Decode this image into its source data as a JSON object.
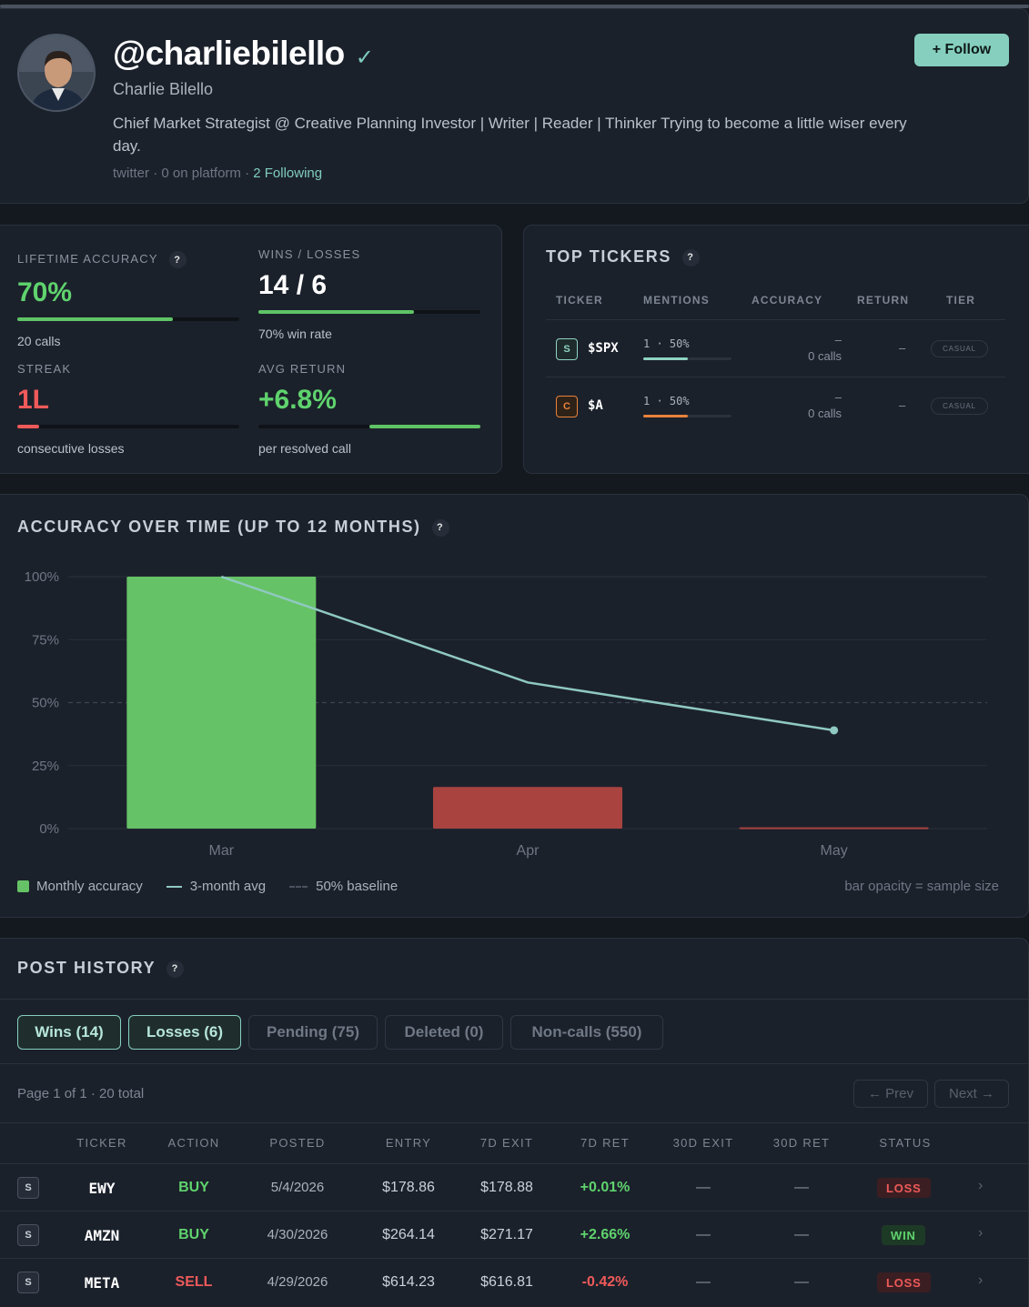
{
  "profile": {
    "handle": "@charliebilello",
    "verified_glyph": "✓",
    "full_name": "Charlie Bilello",
    "bio": "Chief Market Strategist @ Creative Planning Investor | Writer | Reader | Thinker Trying to become a little wiser every day.",
    "source": "twitter",
    "on_platform": "0 on platform",
    "following": "2 Following",
    "separator": "·",
    "follow_label": "+ Follow"
  },
  "stats": {
    "lifetime_accuracy": {
      "label": "LIFETIME ACCURACY",
      "value": "70%",
      "sub": "20 calls",
      "fill_pct": 70
    },
    "wins_losses": {
      "label": "WINS / LOSSES",
      "value": "14 / 6",
      "sub": "70% win rate",
      "fill_pct": 70
    },
    "streak": {
      "label": "STREAK",
      "value": "1L",
      "sub": "consecutive losses",
      "fill_pct": 10
    },
    "avg_return": {
      "label": "AVG RETURN",
      "value": "+6.8%",
      "sub": "per resolved call",
      "fill_pct": 50
    },
    "help_glyph": "?"
  },
  "top_tickers": {
    "title": "TOP TICKERS",
    "headers": [
      "TICKER",
      "MENTIONS",
      "ACCURACY",
      "RETURN",
      "TIER"
    ],
    "rows": [
      {
        "badge": "S",
        "symbol": "$SPX",
        "mentions": "1 · 50%",
        "fill_pct": 50,
        "fill_color": "#8fd3c3",
        "badge_color": "#8fd3c3",
        "badge_bg": "#1e2b2d",
        "accuracy": "–",
        "calls": "0 calls",
        "return": "–",
        "tier": "CASUAL"
      },
      {
        "badge": "C",
        "symbol": "$A",
        "mentions": "1 · 50%",
        "fill_pct": 50,
        "fill_color": "#e8823a",
        "badge_color": "#e8823a",
        "badge_bg": "#2e2218",
        "accuracy": "–",
        "calls": "0 calls",
        "return": "–",
        "tier": "CASUAL"
      }
    ]
  },
  "accuracy_chart": {
    "title": "ACCURACY OVER TIME (UP TO 12 MONTHS)",
    "legend": {
      "monthly": "Monthly accuracy",
      "avg": "3-month avg",
      "baseline": "50% baseline",
      "note": "bar opacity = sample size"
    }
  },
  "chart_data": {
    "type": "bar",
    "categories": [
      "Mar",
      "Apr",
      "May"
    ],
    "series": [
      {
        "name": "Monthly accuracy",
        "type": "bar",
        "values": [
          100,
          16.5,
          0.5
        ],
        "colors": [
          "#66c266",
          "#a84340",
          "#a84340"
        ]
      },
      {
        "name": "3-month avg",
        "type": "line",
        "values": [
          100,
          58,
          39
        ],
        "color": "#8fc9c0"
      }
    ],
    "baseline": {
      "name": "50% baseline",
      "value": 50
    },
    "yticks": [
      "0%",
      "25%",
      "50%",
      "75%",
      "100%"
    ],
    "ylim": [
      0,
      100
    ],
    "grid": true
  },
  "post_history": {
    "title": "POST HISTORY",
    "tabs": [
      {
        "label": "Wins (14)",
        "active": true
      },
      {
        "label": "Losses (6)",
        "active": true
      },
      {
        "label": "Pending (75)",
        "active": false
      },
      {
        "label": "Deleted (0)",
        "active": false
      },
      {
        "label": "Non-calls (550)",
        "active": false
      }
    ],
    "page_info": "Page 1 of 1 · 20 total",
    "prev_label": "← Prev",
    "next_label": "Next →",
    "headers": [
      "TICKER",
      "ACTION",
      "POSTED",
      "ENTRY",
      "7D EXIT",
      "7D RET",
      "30D EXIT",
      "30D RET",
      "STATUS"
    ],
    "rows": [
      {
        "badge": "S",
        "ticker": "EWY",
        "action": "BUY",
        "posted": "5/4/2026",
        "entry": "$178.86",
        "exit7": "$178.88",
        "ret7": "+0.01%",
        "exit30": "—",
        "ret30": "—",
        "status": "LOSS",
        "chevron": "›"
      },
      {
        "badge": "S",
        "ticker": "AMZN",
        "action": "BUY",
        "posted": "4/30/2026",
        "entry": "$264.14",
        "exit7": "$271.17",
        "ret7": "+2.66%",
        "exit30": "—",
        "ret30": "—",
        "status": "WIN",
        "chevron": "›"
      },
      {
        "badge": "S",
        "ticker": "META",
        "action": "SELL",
        "posted": "4/29/2026",
        "entry": "$614.23",
        "exit7": "$616.81",
        "ret7": "-0.42%",
        "exit30": "—",
        "ret30": "—",
        "status": "LOSS",
        "chevron": "›"
      }
    ]
  }
}
